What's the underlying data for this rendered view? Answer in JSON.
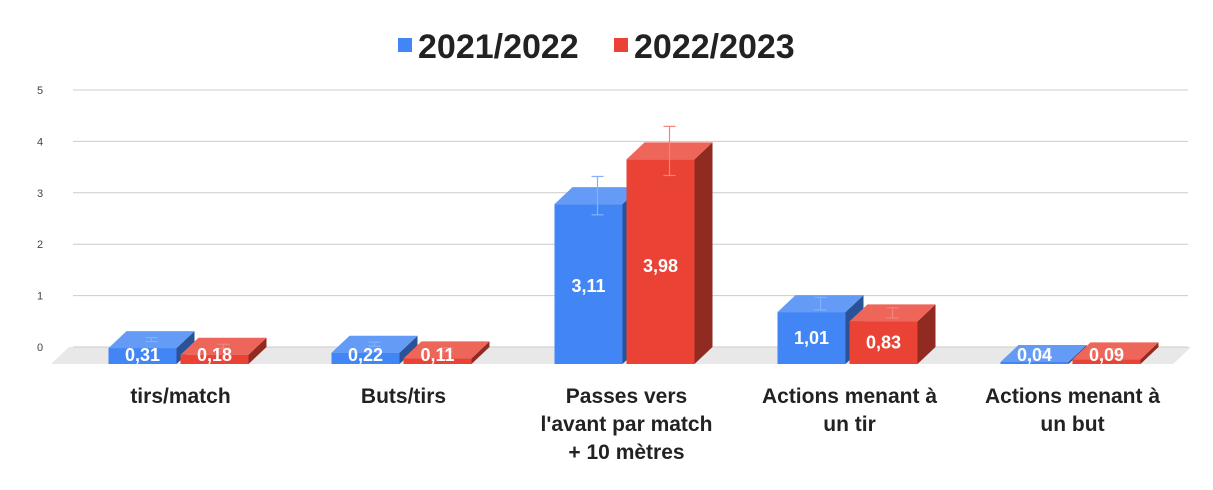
{
  "chart_data": {
    "type": "bar",
    "categories": [
      [
        "tirs/match"
      ],
      [
        "Buts/tirs"
      ],
      [
        "Passes vers",
        "l'avant par match",
        "+ 10 mètres"
      ],
      [
        "Actions menant à",
        "un tir"
      ],
      [
        "Actions menant à",
        "un but"
      ]
    ],
    "series": [
      {
        "name": "2021/2022",
        "color": "#4285f4",
        "values": [
          0.31,
          0.22,
          3.11,
          1.01,
          0.04
        ],
        "labels": [
          "0,31",
          "0,22",
          "3,11",
          "1,01",
          "0,04"
        ]
      },
      {
        "name": "2022/2023",
        "color": "#ea4335",
        "values": [
          0.18,
          0.11,
          3.98,
          0.83,
          0.09
        ],
        "labels": [
          "0,18",
          "0,11",
          "3,98",
          "0,83",
          "0,09"
        ]
      }
    ],
    "yticks": [
      0,
      1,
      2,
      3,
      4,
      5
    ],
    "ylim": [
      0,
      5
    ],
    "error_bars": true,
    "style": "3d",
    "grid": true,
    "legend_position": "top"
  }
}
